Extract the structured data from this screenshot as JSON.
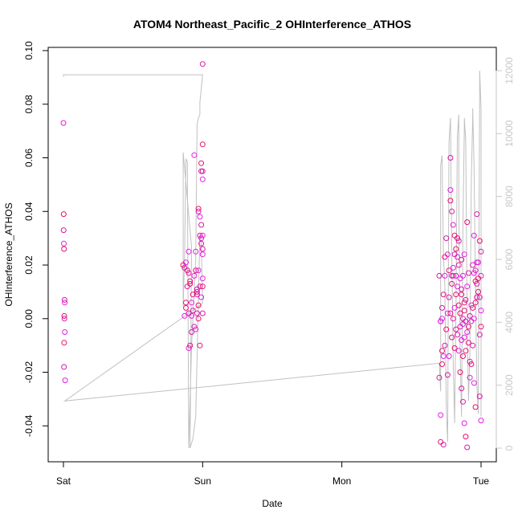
{
  "chart_data": {
    "type": "scatter",
    "title": "ATOM4 Northeast_Pacific_2 OHInterference_ATHOS",
    "xlabel": "Date",
    "ylabel": "OHInterference_ATHOS",
    "x_axis": {
      "ticks": [
        {
          "day": 0,
          "label": "Sat"
        },
        {
          "day": 1,
          "label": "Sun"
        },
        {
          "day": 2,
          "label": "Mon"
        },
        {
          "day": 3,
          "label": "Tue"
        }
      ],
      "range_days": [
        0,
        3
      ]
    },
    "y_axis": {
      "range": [
        -0.048,
        0.1
      ],
      "ticks": [
        -0.04,
        -0.02,
        0.0,
        0.02,
        0.04,
        0.06,
        0.08,
        0.1
      ],
      "tick_labels": [
        "-0.04",
        "-0.02",
        "0.00",
        "0.02",
        "0.04",
        "0.06",
        "0.08",
        "0.10"
      ]
    },
    "y2_axis": {
      "range": [
        0,
        12000
      ],
      "ticks": [
        0,
        2000,
        4000,
        6000,
        8000,
        10000,
        12000
      ],
      "tick_labels": [
        "0",
        "2000",
        "4000",
        "6000",
        "8000",
        "10000",
        "12000"
      ],
      "color": "#c8c8c8"
    },
    "grid": false,
    "series": [
      {
        "type": "points",
        "axis": "left",
        "marker": "open-circle",
        "colors": [
          "#e020e0",
          "#e81070",
          "#d81aa8"
        ],
        "points": [
          [
            0.0,
            0.073
          ],
          [
            0.002,
            0.039
          ],
          [
            0.001,
            0.033
          ],
          [
            0.003,
            0.028
          ],
          [
            0.004,
            0.026
          ],
          [
            0.008,
            0.007
          ],
          [
            0.009,
            0.006
          ],
          [
            0.006,
            0.001
          ],
          [
            0.007,
            0.0
          ],
          [
            0.01,
            -0.005
          ],
          [
            0.005,
            -0.009
          ],
          [
            0.004,
            -0.018
          ],
          [
            0.012,
            -0.023
          ],
          [
            0.86,
            0.02
          ],
          [
            0.87,
            0.019
          ],
          [
            0.88,
            0.021
          ],
          [
            0.89,
            0.018
          ],
          [
            0.9,
            0.017
          ],
          [
            0.87,
            0.001
          ],
          [
            0.88,
            0.006
          ],
          [
            0.89,
            0.012
          ],
          [
            0.9,
            0.025
          ],
          [
            0.91,
            0.013
          ],
          [
            0.92,
            -0.005
          ],
          [
            0.9,
            -0.011
          ],
          [
            0.91,
            -0.01
          ],
          [
            0.93,
            0.003
          ],
          [
            0.94,
            0.016
          ],
          [
            0.88,
            0.004
          ],
          [
            0.9,
            0.002
          ],
          [
            0.92,
            0.001
          ],
          [
            0.93,
            0.009
          ],
          [
            0.94,
            -0.003
          ],
          [
            0.95,
            0.025
          ],
          [
            0.95,
            0.018
          ],
          [
            0.96,
            0.009
          ],
          [
            0.95,
            -0.004
          ],
          [
            0.96,
            0.01
          ],
          [
            0.96,
            0.011
          ],
          [
            0.94,
            0.061
          ],
          [
            0.97,
            0.041
          ],
          [
            0.97,
            0.04
          ],
          [
            0.98,
            0.038
          ],
          [
            0.98,
            0.031
          ],
          [
            0.99,
            0.035
          ],
          [
            0.99,
            0.03
          ],
          [
            0.99,
            0.028
          ],
          [
            1.0,
            0.026
          ],
          [
            1.0,
            0.024
          ],
          [
            0.99,
            0.058
          ],
          [
            1.0,
            0.055
          ],
          [
            1.0,
            0.052
          ],
          [
            1.0,
            0.065
          ],
          [
            0.99,
            0.055
          ],
          [
            0.99,
            0.008
          ],
          [
            0.98,
            -0.01
          ],
          [
            0.98,
            0.012
          ],
          [
            1.0,
            0.015
          ],
          [
            1.0,
            0.012
          ],
          [
            1.0,
            0.002
          ],
          [
            1.0,
            0.031
          ],
          [
            0.97,
            0.0
          ],
          [
            0.96,
            0.002
          ],
          [
            0.97,
            0.018
          ],
          [
            0.97,
            0.005
          ],
          [
            1.0,
            0.095
          ],
          [
            0.92,
            0.006
          ],
          [
            0.91,
            0.014
          ],
          [
            2.7,
            0.016
          ],
          [
            2.71,
            -0.001
          ],
          [
            2.72,
            -0.012
          ],
          [
            2.7,
            -0.022
          ],
          [
            2.71,
            -0.036
          ],
          [
            2.71,
            -0.046
          ],
          [
            2.73,
            -0.047
          ],
          [
            2.72,
            0.0
          ],
          [
            2.74,
            0.023
          ],
          [
            2.75,
            0.03
          ],
          [
            2.76,
            0.024
          ],
          [
            2.77,
            0.018
          ],
          [
            2.78,
            0.06
          ],
          [
            2.78,
            0.048
          ],
          [
            2.78,
            0.044
          ],
          [
            2.79,
            0.04
          ],
          [
            2.8,
            0.035
          ],
          [
            2.81,
            0.031
          ],
          [
            2.82,
            0.016
          ],
          [
            2.83,
            0.012
          ],
          [
            2.84,
            0.005
          ],
          [
            2.85,
            -0.003
          ],
          [
            2.86,
            -0.008
          ],
          [
            2.87,
            -0.014
          ],
          [
            2.87,
            -0.031
          ],
          [
            2.88,
            -0.039
          ],
          [
            2.89,
            -0.044
          ],
          [
            2.9,
            -0.048
          ],
          [
            2.92,
            -0.022
          ],
          [
            2.93,
            -0.017
          ],
          [
            2.94,
            -0.01
          ],
          [
            2.95,
            0.0
          ],
          [
            2.96,
            0.006
          ],
          [
            2.97,
            0.013
          ],
          [
            2.98,
            0.021
          ],
          [
            2.99,
            0.029
          ],
          [
            3.0,
            0.025
          ],
          [
            3.0,
            0.016
          ],
          [
            2.98,
            0.01
          ],
          [
            2.99,
            -0.006
          ],
          [
            2.95,
            -0.024
          ],
          [
            2.96,
            -0.033
          ],
          [
            2.97,
            0.039
          ],
          [
            2.95,
            0.031
          ],
          [
            2.9,
            0.036
          ],
          [
            2.91,
            0.017
          ],
          [
            2.88,
            0.024
          ],
          [
            2.86,
            0.022
          ],
          [
            2.84,
            0.02
          ],
          [
            2.83,
            0.023
          ],
          [
            2.82,
            0.026
          ],
          [
            2.81,
            0.024
          ],
          [
            2.8,
            0.016
          ],
          [
            2.79,
            0.013
          ],
          [
            2.77,
            0.008
          ],
          [
            2.76,
            0.002
          ],
          [
            2.75,
            -0.004
          ],
          [
            2.74,
            -0.01
          ],
          [
            2.73,
            -0.014
          ],
          [
            2.72,
            -0.017
          ],
          [
            2.76,
            -0.021
          ],
          [
            2.77,
            -0.014
          ],
          [
            2.79,
            -0.007
          ],
          [
            2.8,
            0.0
          ],
          [
            2.81,
            0.004
          ],
          [
            2.82,
            0.009
          ],
          [
            2.83,
            -0.006
          ],
          [
            2.84,
            -0.012
          ],
          [
            2.85,
            -0.02
          ],
          [
            2.86,
            -0.026
          ],
          [
            2.87,
            -0.002
          ],
          [
            2.88,
            0.003
          ],
          [
            2.89,
            0.007
          ],
          [
            2.9,
            0.012
          ],
          [
            2.91,
            -0.009
          ],
          [
            2.92,
            -0.016
          ],
          [
            2.93,
            -0.001
          ],
          [
            2.94,
            0.004
          ],
          [
            2.96,
            0.018
          ],
          [
            2.97,
            0.021
          ],
          [
            2.98,
            0.015
          ],
          [
            2.99,
            0.008
          ],
          [
            3.0,
            0.003
          ],
          [
            3.0,
            -0.003
          ],
          [
            2.99,
            -0.029
          ],
          [
            3.0,
            -0.038
          ],
          [
            2.85,
            0.002
          ],
          [
            2.86,
            0.011
          ],
          [
            2.87,
            0.016
          ],
          [
            2.88,
            0.006
          ],
          [
            2.89,
            -0.001
          ],
          [
            2.9,
            -0.005
          ],
          [
            2.91,
            -0.003
          ],
          [
            2.92,
            0.001
          ],
          [
            2.93,
            0.005
          ],
          [
            2.78,
            0.002
          ],
          [
            2.79,
            0.016
          ],
          [
            2.8,
            0.019
          ],
          [
            2.81,
            -0.011
          ],
          [
            2.82,
            -0.004
          ],
          [
            2.74,
            0.016
          ],
          [
            2.73,
            0.009
          ],
          [
            2.72,
            0.004
          ],
          [
            2.71,
            -0.001
          ],
          [
            2.83,
            0.03
          ],
          [
            2.84,
            0.029
          ],
          [
            2.85,
            0.015
          ],
          [
            2.86,
            0.009
          ],
          [
            2.87,
            0.0
          ],
          [
            2.88,
            -0.007
          ],
          [
            2.89,
            -0.012
          ],
          [
            2.94,
            0.02
          ],
          [
            2.95,
            0.017
          ],
          [
            2.96,
            0.014
          ],
          [
            2.97,
            0.008
          ]
        ]
      },
      {
        "type": "line",
        "axis": "right",
        "color": "#c0c0c0",
        "points": [
          [
            0.0,
            11800
          ],
          [
            0.0,
            11850
          ],
          [
            0.0,
            11870
          ],
          [
            1.0,
            11870
          ],
          [
            0.98,
            11000
          ],
          [
            0.98,
            10600
          ],
          [
            0.97,
            10500
          ],
          [
            0.96,
            10300
          ],
          [
            0.95,
            6000
          ],
          [
            0.92,
            3200
          ],
          [
            0.9,
            0
          ],
          [
            0.89,
            9100
          ],
          [
            0.88,
            9200
          ],
          [
            0.87,
            6000
          ],
          [
            0.86,
            4500
          ],
          [
            0.86,
            9400
          ],
          [
            0.92,
            6400
          ],
          [
            0.91,
            0
          ],
          [
            0.93,
            300
          ],
          [
            0.95,
            1000
          ],
          [
            0.98,
            6800
          ],
          [
            0.99,
            6500
          ],
          [
            1.0,
            4600
          ],
          [
            0.01,
            1500
          ],
          [
            2.7,
            2700
          ],
          [
            2.71,
            1800
          ],
          [
            2.71,
            9000
          ],
          [
            2.72,
            9300
          ],
          [
            2.73,
            6100
          ],
          [
            2.74,
            5200
          ],
          [
            2.75,
            1300
          ],
          [
            2.76,
            200
          ],
          [
            2.77,
            9700
          ],
          [
            2.78,
            10500
          ],
          [
            2.79,
            6200
          ],
          [
            2.8,
            2800
          ],
          [
            2.81,
            800
          ],
          [
            2.82,
            4500
          ],
          [
            2.83,
            9900
          ],
          [
            2.84,
            10600
          ],
          [
            2.84,
            8000
          ],
          [
            2.85,
            3000
          ],
          [
            2.86,
            1000
          ],
          [
            2.87,
            7200
          ],
          [
            2.88,
            10200
          ],
          [
            2.88,
            10500
          ],
          [
            2.89,
            9800
          ],
          [
            2.9,
            4000
          ],
          [
            2.91,
            1500
          ],
          [
            2.92,
            3000
          ],
          [
            2.93,
            8500
          ],
          [
            2.94,
            10500
          ],
          [
            2.94,
            10800
          ],
          [
            2.95,
            9000
          ],
          [
            2.96,
            5000
          ],
          [
            2.97,
            2000
          ],
          [
            2.98,
            1100
          ],
          [
            2.99,
            11500
          ],
          [
            2.99,
            12000
          ],
          [
            3.0,
            10800
          ],
          [
            3.0,
            7000
          ],
          [
            3.0,
            3500
          ],
          [
            3.0,
            1000
          ]
        ]
      }
    ]
  }
}
